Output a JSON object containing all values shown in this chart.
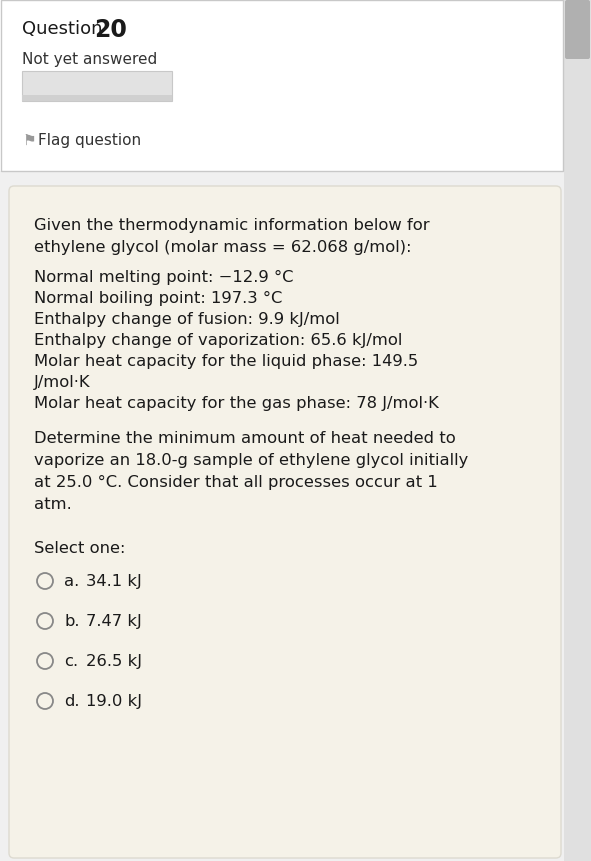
{
  "question_number": "20",
  "status": "Not yet answered",
  "flag_text": "Flag question",
  "bg_top": "#f0f0f0",
  "bg_header": "#f0f0f0",
  "bg_question": "#f5f2e8",
  "header_separator_color": "#cccccc",
  "intro_line1": "Given the thermodynamic information below for",
  "intro_line2": "ethylene glycol (molar mass = 62.068 g/mol):",
  "data_lines": [
    "Normal melting point: −12.9 °C",
    "Normal boiling point: 197.3 °C",
    "Enthalpy change of fusion: 9.9 kJ/mol",
    "Enthalpy change of vaporization: 65.6 kJ/mol",
    "Molar heat capacity for the liquid phase: 149.5",
    "J/mol·K",
    "Molar heat capacity for the gas phase: 78 J/mol·K"
  ],
  "question_line1": "Determine the minimum amount of heat needed to",
  "question_line2": "vaporize an 18.0-g sample of ethylene glycol initially",
  "question_line3": "at 25.0 °C. Consider that all processes occur at 1",
  "question_line4": "atm.",
  "select_label": "Select one:",
  "options": [
    {
      "label": "a.",
      "text": "34.1 kJ"
    },
    {
      "label": "b.",
      "text": "7.47 kJ"
    },
    {
      "label": "c.",
      "text": "26.5 kJ"
    },
    {
      "label": "d.",
      "text": "19.0 kJ"
    }
  ],
  "text_color": "#1a1a1a",
  "label_color": "#333333",
  "circle_color": "#888888",
  "scrollbar_bg": "#e0e0e0",
  "scrollbar_thumb": "#b0b0b0"
}
